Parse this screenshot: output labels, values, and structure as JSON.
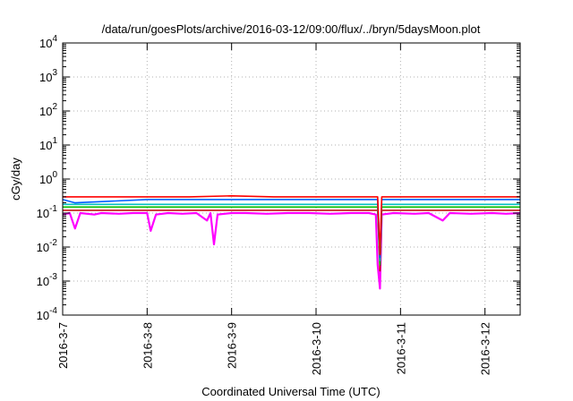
{
  "chart_data": {
    "type": "line",
    "title": "/data/run/goesPlots/archive/2016-03-12/09:00/flux/../bryn/5daysMoon.plot",
    "xlabel": "Coordinated Universal Time (UTC)",
    "ylabel": "cGy/day",
    "yscale": "log",
    "ylim": [
      0.0001,
      10000
    ],
    "xlim": [
      "2016-03-07T00:00",
      "2016-03-12T10:00"
    ],
    "grid": true,
    "legend": "none",
    "x_ticks": [
      "2016-3-7",
      "2016-3-8",
      "2016-3-9",
      "2016-3-10",
      "2016-3-11",
      "2016-3-12"
    ],
    "y_ticks": [
      {
        "base": "10",
        "exp": "-4"
      },
      {
        "base": "10",
        "exp": "-3"
      },
      {
        "base": "10",
        "exp": "-2"
      },
      {
        "base": "10",
        "exp": "-1"
      },
      {
        "base": "10",
        "exp": "0"
      },
      {
        "base": "10",
        "exp": "1"
      },
      {
        "base": "10",
        "exp": "2"
      },
      {
        "base": "10",
        "exp": "3"
      },
      {
        "base": "10",
        "exp": "4"
      }
    ],
    "series": [
      {
        "color": "#ff00ff",
        "values": [
          [
            "2016-03-07T00:00",
            0.09
          ],
          [
            "2016-03-07T02:00",
            0.1
          ],
          [
            "2016-03-07T03:30",
            0.035
          ],
          [
            "2016-03-07T05:00",
            0.1
          ],
          [
            "2016-03-07T09:00",
            0.09
          ],
          [
            "2016-03-07T11:00",
            0.1
          ],
          [
            "2016-03-07T16:00",
            0.095
          ],
          [
            "2016-03-07T20:00",
            0.1
          ],
          [
            "2016-03-08T00:00",
            0.1
          ],
          [
            "2016-03-08T01:00",
            0.03
          ],
          [
            "2016-03-08T02:30",
            0.09
          ],
          [
            "2016-03-08T06:00",
            0.1
          ],
          [
            "2016-03-08T10:00",
            0.095
          ],
          [
            "2016-03-08T14:00",
            0.1
          ],
          [
            "2016-03-08T17:00",
            0.06
          ],
          [
            "2016-03-08T18:00",
            0.1
          ],
          [
            "2016-03-08T19:00",
            0.012
          ],
          [
            "2016-03-08T20:00",
            0.09
          ],
          [
            "2016-03-09T00:00",
            0.1
          ],
          [
            "2016-03-09T04:00",
            0.1
          ],
          [
            "2016-03-09T10:00",
            0.095
          ],
          [
            "2016-03-09T16:00",
            0.1
          ],
          [
            "2016-03-09T22:00",
            0.1
          ],
          [
            "2016-03-10T04:00",
            0.095
          ],
          [
            "2016-03-10T10:00",
            0.1
          ],
          [
            "2016-03-10T15:00",
            0.1
          ],
          [
            "2016-03-10T17:00",
            0.09
          ],
          [
            "2016-03-10T17:30",
            0.003
          ],
          [
            "2016-03-10T18:10",
            0.0006
          ],
          [
            "2016-03-10T18:40",
            0.09
          ],
          [
            "2016-03-10T22:00",
            0.1
          ],
          [
            "2016-03-11T04:00",
            0.095
          ],
          [
            "2016-03-11T08:00",
            0.1
          ],
          [
            "2016-03-11T12:00",
            0.06
          ],
          [
            "2016-03-11T14:00",
            0.1
          ],
          [
            "2016-03-11T20:00",
            0.095
          ],
          [
            "2016-03-12T02:00",
            0.1
          ],
          [
            "2016-03-12T06:00",
            0.095
          ],
          [
            "2016-03-12T10:00",
            0.1
          ]
        ]
      },
      {
        "color": "#c00000",
        "values": [
          [
            "2016-03-07T00:00",
            0.12
          ],
          [
            "2016-03-08T00:00",
            0.12
          ],
          [
            "2016-03-09T00:00",
            0.12
          ],
          [
            "2016-03-10T00:00",
            0.12
          ],
          [
            "2016-03-10T17:30",
            0.12
          ],
          [
            "2016-03-10T18:10",
            0.002
          ],
          [
            "2016-03-10T18:40",
            0.12
          ],
          [
            "2016-03-11T00:00",
            0.12
          ],
          [
            "2016-03-12T00:00",
            0.12
          ],
          [
            "2016-03-12T10:00",
            0.12
          ]
        ]
      },
      {
        "color": "#00c000",
        "values": [
          [
            "2016-03-07T00:00",
            0.15
          ],
          [
            "2016-03-08T00:00",
            0.15
          ],
          [
            "2016-03-09T00:00",
            0.15
          ],
          [
            "2016-03-10T00:00",
            0.15
          ],
          [
            "2016-03-10T17:30",
            0.15
          ],
          [
            "2016-03-10T18:10",
            0.003
          ],
          [
            "2016-03-10T18:40",
            0.15
          ],
          [
            "2016-03-11T00:00",
            0.15
          ],
          [
            "2016-03-12T00:00",
            0.15
          ],
          [
            "2016-03-12T10:00",
            0.15
          ]
        ]
      },
      {
        "color": "#00c0c0",
        "values": [
          [
            "2016-03-07T00:00",
            0.18
          ],
          [
            "2016-03-08T00:00",
            0.18
          ],
          [
            "2016-03-09T00:00",
            0.18
          ],
          [
            "2016-03-10T00:00",
            0.18
          ],
          [
            "2016-03-10T17:30",
            0.18
          ],
          [
            "2016-03-10T18:10",
            0.004
          ],
          [
            "2016-03-10T18:40",
            0.18
          ],
          [
            "2016-03-11T00:00",
            0.18
          ],
          [
            "2016-03-12T00:00",
            0.18
          ],
          [
            "2016-03-12T10:00",
            0.18
          ]
        ]
      },
      {
        "color": "#0060ff",
        "values": [
          [
            "2016-03-07T00:00",
            0.25
          ],
          [
            "2016-03-07T03:30",
            0.2
          ],
          [
            "2016-03-08T00:00",
            0.25
          ],
          [
            "2016-03-09T00:00",
            0.25
          ],
          [
            "2016-03-10T00:00",
            0.25
          ],
          [
            "2016-03-10T17:30",
            0.25
          ],
          [
            "2016-03-10T18:10",
            0.005
          ],
          [
            "2016-03-10T18:40",
            0.25
          ],
          [
            "2016-03-11T00:00",
            0.25
          ],
          [
            "2016-03-12T00:00",
            0.25
          ],
          [
            "2016-03-12T10:00",
            0.25
          ]
        ]
      },
      {
        "color": "#ff0000",
        "values": [
          [
            "2016-03-07T00:00",
            0.3
          ],
          [
            "2016-03-07T12:00",
            0.3
          ],
          [
            "2016-03-08T00:00",
            0.3
          ],
          [
            "2016-03-08T12:00",
            0.3
          ],
          [
            "2016-03-09T00:00",
            0.32
          ],
          [
            "2016-03-09T12:00",
            0.3
          ],
          [
            "2016-03-10T00:00",
            0.3
          ],
          [
            "2016-03-10T17:30",
            0.3
          ],
          [
            "2016-03-10T18:10",
            0.006
          ],
          [
            "2016-03-10T18:40",
            0.3
          ],
          [
            "2016-03-11T00:00",
            0.3
          ],
          [
            "2016-03-12T00:00",
            0.3
          ],
          [
            "2016-03-12T10:00",
            0.3
          ]
        ]
      }
    ]
  }
}
